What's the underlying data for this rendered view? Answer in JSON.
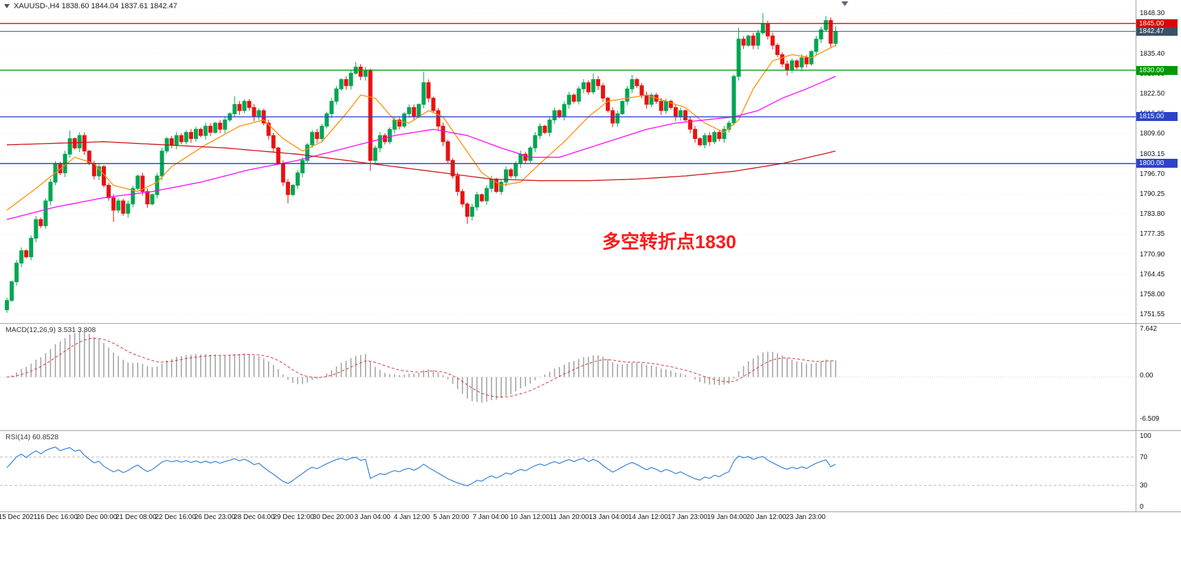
{
  "header": {
    "title": "XAUUSD-,H4  1838.60 1844.04 1837.61 1842.47"
  },
  "chart_data": {
    "type": "candlestick",
    "symbol": "XAUUSD-",
    "timeframe": "H4",
    "last_ohlc": {
      "open": 1838.6,
      "high": 1844.04,
      "low": 1837.61,
      "close": 1842.47
    },
    "colors": {
      "bull": "#00a651",
      "bear": "#e81212",
      "grid": "#efefef"
    },
    "price_axis": {
      "min": 1749.6,
      "max": 1849.9,
      "ticks": [
        "1848.30",
        "1841.85",
        "1835.40",
        "1828.95",
        "1822.50",
        "1816.05",
        "1809.60",
        "1803.15",
        "1796.70",
        "1790.25",
        "1783.80",
        "1777.35",
        "1770.90",
        "1764.45",
        "1758.00",
        "1751.55"
      ]
    },
    "hlines": [
      {
        "price": 1845.0,
        "label": "1845.00",
        "color": "#e00000",
        "width": 1.4
      },
      {
        "price": 1842.47,
        "label": "1842.47",
        "color": "#3d5166",
        "width": 1
      },
      {
        "price": 1830.0,
        "label": "1830.00",
        "color": "#009a00",
        "width": 1.4
      },
      {
        "price": 1815.0,
        "label": "1815.00",
        "color": "#2b44c9",
        "width": 1.4
      },
      {
        "price": 1800.0,
        "label": "1800.00",
        "color": "#2b44c9",
        "width": 1.4
      }
    ],
    "annotation": {
      "text": "多空转折点1830",
      "color": "#ff1a1a"
    },
    "candles": {
      "first_open": 1753,
      "closes": [
        1756,
        1762,
        1768,
        1772,
        1770,
        1776,
        1782,
        1780,
        1788,
        1794,
        1800,
        1797,
        1803,
        1808,
        1805,
        1809,
        1804,
        1800,
        1796,
        1799,
        1793,
        1789,
        1785,
        1788,
        1784,
        1787,
        1792,
        1796,
        1791,
        1787,
        1790,
        1796,
        1804,
        1808,
        1806,
        1809,
        1807,
        1810,
        1808,
        1811,
        1809,
        1812,
        1810,
        1813,
        1811,
        1814,
        1816,
        1819,
        1817,
        1820,
        1818,
        1815,
        1817,
        1813,
        1809,
        1805,
        1800,
        1794,
        1790,
        1793,
        1797,
        1801,
        1806,
        1810,
        1808,
        1812,
        1816,
        1820,
        1824,
        1827,
        1825,
        1829,
        1831,
        1828,
        1830,
        1801,
        1805,
        1809,
        1807,
        1811,
        1814,
        1812,
        1816,
        1818,
        1815,
        1819,
        1826,
        1821,
        1817,
        1812,
        1807,
        1801,
        1796,
        1791,
        1787,
        1783,
        1786,
        1790,
        1788,
        1792,
        1795,
        1791,
        1794,
        1798,
        1796,
        1800,
        1803,
        1801,
        1805,
        1809,
        1812,
        1810,
        1814,
        1817,
        1815,
        1819,
        1822,
        1820,
        1824,
        1826,
        1823,
        1827,
        1825,
        1821,
        1817,
        1813,
        1816,
        1820,
        1824,
        1827,
        1825,
        1822,
        1819,
        1822,
        1820,
        1817,
        1820,
        1818,
        1815,
        1817,
        1814,
        1811,
        1808,
        1806,
        1809,
        1807,
        1810,
        1808,
        1811,
        1813,
        1828,
        1840,
        1838,
        1841,
        1838,
        1842,
        1845,
        1841,
        1838,
        1835,
        1832,
        1830,
        1833,
        1831,
        1834,
        1832,
        1836,
        1840,
        1843,
        1846,
        1838.6,
        1842.47
      ],
      "extremes": {
        "0": {
          "l": 1752
        },
        "13": {
          "h": 1810.6
        },
        "22": {
          "l": 1781.2
        },
        "47": {
          "h": 1821.6
        },
        "58": {
          "l": 1787.2
        },
        "72": {
          "h": 1832.6
        },
        "75": {
          "l": 1797.6
        },
        "86": {
          "h": 1829.5
        },
        "95": {
          "l": 1780.6
        },
        "121": {
          "h": 1828.9
        },
        "129": {
          "h": 1828.5
        },
        "151": {
          "h": 1843.6
        },
        "156": {
          "h": 1848.3
        },
        "161": {
          "l": 1828.3
        },
        "169": {
          "h": 1847.4
        },
        "171": {
          "h": 1844.04,
          "l": 1837.61
        }
      }
    },
    "moving_averages": [
      {
        "name": "ma-fast",
        "color": "#ff8c00",
        "points": [
          [
            0,
            1785
          ],
          [
            6,
            1792
          ],
          [
            10,
            1797
          ],
          [
            14,
            1802
          ],
          [
            18,
            1800
          ],
          [
            22,
            1793
          ],
          [
            27,
            1791
          ],
          [
            31,
            1794
          ],
          [
            34,
            1799
          ],
          [
            41,
            1806
          ],
          [
            48,
            1812
          ],
          [
            53,
            1814
          ],
          [
            57,
            1808
          ],
          [
            61,
            1804
          ],
          [
            65,
            1807
          ],
          [
            70,
            1816
          ],
          [
            73,
            1822
          ],
          [
            76,
            1821
          ],
          [
            80,
            1814
          ],
          [
            83,
            1813
          ],
          [
            87,
            1817
          ],
          [
            90,
            1815
          ],
          [
            94,
            1806
          ],
          [
            98,
            1797
          ],
          [
            102,
            1793
          ],
          [
            106,
            1794
          ],
          [
            110,
            1800
          ],
          [
            115,
            1807
          ],
          [
            120,
            1815
          ],
          [
            124,
            1820
          ],
          [
            128,
            1821
          ],
          [
            132,
            1822
          ],
          [
            136,
            1820
          ],
          [
            140,
            1818
          ],
          [
            144,
            1813
          ],
          [
            148,
            1810
          ],
          [
            151,
            1814
          ],
          [
            154,
            1824
          ],
          [
            158,
            1833
          ],
          [
            162,
            1835
          ],
          [
            166,
            1834
          ],
          [
            171,
            1838
          ]
        ]
      },
      {
        "name": "ma-mid",
        "color": "#ff00ff",
        "points": [
          [
            0,
            1782
          ],
          [
            10,
            1786
          ],
          [
            20,
            1789
          ],
          [
            30,
            1791
          ],
          [
            40,
            1794
          ],
          [
            50,
            1798
          ],
          [
            60,
            1801
          ],
          [
            70,
            1805
          ],
          [
            80,
            1809
          ],
          [
            88,
            1811
          ],
          [
            95,
            1809
          ],
          [
            102,
            1805
          ],
          [
            108,
            1802
          ],
          [
            114,
            1802
          ],
          [
            120,
            1805
          ],
          [
            126,
            1808
          ],
          [
            132,
            1811
          ],
          [
            138,
            1813
          ],
          [
            144,
            1814
          ],
          [
            150,
            1815
          ],
          [
            155,
            1817
          ],
          [
            160,
            1821
          ],
          [
            165,
            1824
          ],
          [
            171,
            1828
          ]
        ]
      },
      {
        "name": "ma-slow",
        "color": "#cc1111",
        "points": [
          [
            0,
            1806
          ],
          [
            20,
            1807
          ],
          [
            45,
            1805
          ],
          [
            60,
            1803
          ],
          [
            70,
            1801
          ],
          [
            80,
            1799
          ],
          [
            90,
            1797
          ],
          [
            100,
            1795
          ],
          [
            110,
            1794.5
          ],
          [
            120,
            1794.5
          ],
          [
            130,
            1795
          ],
          [
            140,
            1796
          ],
          [
            150,
            1797.5
          ],
          [
            160,
            1800
          ],
          [
            171,
            1804
          ]
        ]
      }
    ],
    "macd": {
      "label": "MACD(12,26,9) 3.531 3.808",
      "fast": 12,
      "slow": 26,
      "signal": 9,
      "axis_labels": [
        "7.642",
        "0.00",
        "-6.509"
      ],
      "histogram_color": "#9c9c9c",
      "signal_color": "#e03030"
    },
    "rsi": {
      "label": "RSI(14) 60.8528",
      "period": 14,
      "value": 60.8528,
      "axis_labels": [
        "100",
        "70",
        "30",
        "0"
      ],
      "levels": [
        70,
        30
      ],
      "line_color": "#2f7ed8"
    },
    "time_axis": [
      "15 Dec 2021",
      "16 Dec 16:00",
      "20 Dec 00:00",
      "21 Dec 08:00",
      "22 Dec 16:00",
      "26 Dec 23:00",
      "28 Dec 04:00",
      "29 Dec 12:00",
      "30 Dec 20:00",
      "3 Jan 04:00",
      "4 Jan 12:00",
      "5 Jan 20:00",
      "7 Jan 04:00",
      "10 Jan 12:00",
      "11 Jan 20:00",
      "13 Jan 04:00",
      "14 Jan 12:00",
      "17 Jan 23:00",
      "19 Jan 04:00",
      "20 Jan 12:00",
      "23 Jan 23:00"
    ]
  }
}
